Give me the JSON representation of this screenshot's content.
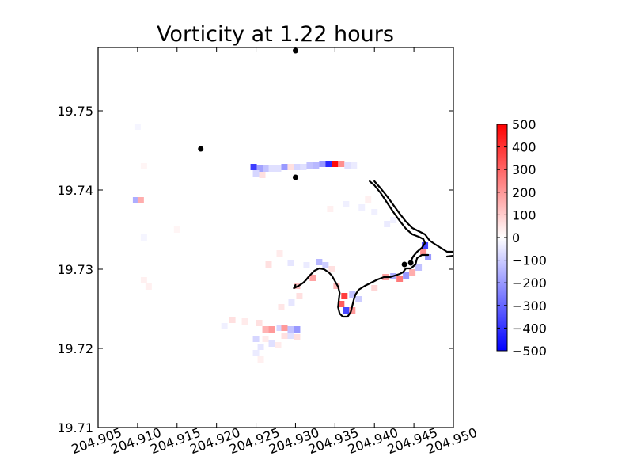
{
  "chart_data": {
    "type": "heatmap",
    "title": "Vorticity at 1.22 hours",
    "xlabel": "",
    "ylabel": "",
    "xlim": [
      204.905,
      204.95
    ],
    "ylim": [
      19.71,
      19.758
    ],
    "x_ticks": [
      "204.905",
      "204.910",
      "204.915",
      "204.920",
      "204.925",
      "204.930",
      "204.935",
      "204.940",
      "204.945",
      "204.950"
    ],
    "y_ticks": [
      "19.71",
      "19.72",
      "19.73",
      "19.74",
      "19.75"
    ],
    "colorbar": {
      "min": -500,
      "max": 500,
      "ticks": [
        "500",
        "400",
        "300",
        "200",
        "100",
        "0",
        "−100",
        "−200",
        "−300",
        "−400",
        "−500"
      ],
      "colormap": "bwr",
      "low_color": "#0000ff",
      "mid_color": "#ffffff",
      "high_color": "#ff0000"
    },
    "gauge_points": [
      {
        "x": 204.93,
        "y": 19.7576
      },
      {
        "x": 204.918,
        "y": 19.7452
      },
      {
        "x": 204.93,
        "y": 19.7416
      },
      {
        "x": 204.9438,
        "y": 19.7306
      },
      {
        "x": 204.9446,
        "y": 19.7308
      }
    ],
    "shoreline": [
      [
        [
          204.9394,
          19.7411
        ],
        [
          204.94,
          19.7406
        ],
        [
          204.9408,
          19.7396
        ],
        [
          204.9416,
          19.7384
        ],
        [
          204.9424,
          19.7372
        ],
        [
          204.9432,
          19.7361
        ],
        [
          204.944,
          19.7351
        ],
        [
          204.9448,
          19.7344
        ],
        [
          204.9456,
          19.7341
        ],
        [
          204.9462,
          19.7338
        ],
        [
          204.9464,
          19.7333
        ],
        [
          204.946,
          19.7327
        ],
        [
          204.9454,
          19.7322
        ],
        [
          204.9449,
          19.7316
        ],
        [
          204.9446,
          19.731
        ]
      ],
      [
        [
          204.94,
          19.7411
        ],
        [
          204.9408,
          19.7402
        ],
        [
          204.9416,
          19.7392
        ],
        [
          204.9424,
          19.7381
        ],
        [
          204.9432,
          19.737
        ],
        [
          204.944,
          19.736
        ],
        [
          204.9448,
          19.7352
        ],
        [
          204.9456,
          19.7348
        ],
        [
          204.9464,
          19.7344
        ],
        [
          204.947,
          19.7336
        ],
        [
          204.9476,
          19.7332
        ],
        [
          204.9484,
          19.7327
        ],
        [
          204.9492,
          19.7322
        ],
        [
          204.95,
          19.7322
        ]
      ],
      [
        [
          204.9468,
          19.7318
        ],
        [
          204.946,
          19.7318
        ],
        [
          204.9454,
          19.7314
        ],
        [
          204.9452,
          19.7306
        ],
        [
          204.9446,
          19.7301
        ],
        [
          204.944,
          19.7301
        ],
        [
          204.9436,
          19.7296
        ],
        [
          204.9432,
          19.7294
        ],
        [
          204.9426,
          19.7292
        ],
        [
          204.942,
          19.729
        ],
        [
          204.9412,
          19.729
        ],
        [
          204.9404,
          19.7287
        ],
        [
          204.9396,
          19.7283
        ],
        [
          204.9388,
          19.7279
        ],
        [
          204.938,
          19.7274
        ],
        [
          204.9376,
          19.7268
        ],
        [
          204.9374,
          19.7262
        ],
        [
          204.9372,
          19.7254
        ],
        [
          204.937,
          19.7246
        ],
        [
          204.9366,
          19.724
        ],
        [
          204.936,
          19.724
        ],
        [
          204.9356,
          19.7244
        ],
        [
          204.9354,
          19.7252
        ],
        [
          204.9355,
          19.7262
        ],
        [
          204.9356,
          19.727
        ],
        [
          204.9354,
          19.7278
        ],
        [
          204.935,
          19.7285
        ],
        [
          204.9346,
          19.7292
        ],
        [
          204.9342,
          19.7296
        ],
        [
          204.9336,
          19.73
        ],
        [
          204.933,
          19.7301
        ],
        [
          204.9324,
          19.7298
        ],
        [
          204.9318,
          19.7292
        ],
        [
          204.9313,
          19.7286
        ],
        [
          204.931,
          19.7283
        ],
        [
          204.9304,
          19.7279
        ],
        [
          204.9298,
          19.7276
        ],
        [
          204.93,
          19.728
        ]
      ],
      [
        [
          204.9492,
          19.7316
        ],
        [
          204.95,
          19.7317
        ]
      ]
    ],
    "vorticity_cells": [
      {
        "x": 204.9247,
        "y": 19.7429,
        "v": -380
      },
      {
        "x": 204.9255,
        "y": 19.7427,
        "v": -180
      },
      {
        "x": 204.9263,
        "y": 19.7427,
        "v": -120
      },
      {
        "x": 204.927,
        "y": 19.7427,
        "v": -60
      },
      {
        "x": 204.9278,
        "y": 19.7427,
        "v": -60
      },
      {
        "x": 204.9286,
        "y": 19.7429,
        "v": -200
      },
      {
        "x": 204.9294,
        "y": 19.7429,
        "v": 60
      },
      {
        "x": 204.9302,
        "y": 19.7429,
        "v": -80
      },
      {
        "x": 204.931,
        "y": 19.7429,
        "v": -60
      },
      {
        "x": 204.9318,
        "y": 19.7431,
        "v": -120
      },
      {
        "x": 204.9326,
        "y": 19.7431,
        "v": -140
      },
      {
        "x": 204.9334,
        "y": 19.7433,
        "v": -200
      },
      {
        "x": 204.9342,
        "y": 19.7433,
        "v": -420
      },
      {
        "x": 204.935,
        "y": 19.7433,
        "v": 480
      },
      {
        "x": 204.9358,
        "y": 19.7433,
        "v": 220
      },
      {
        "x": 204.9366,
        "y": 19.7431,
        "v": -60
      },
      {
        "x": 204.9374,
        "y": 19.7431,
        "v": -40
      },
      {
        "x": 204.925,
        "y": 19.7421,
        "v": -80
      },
      {
        "x": 204.9258,
        "y": 19.7419,
        "v": 60
      },
      {
        "x": 204.9098,
        "y": 19.7387,
        "v": -160
      },
      {
        "x": 204.9104,
        "y": 19.7387,
        "v": 160
      },
      {
        "x": 204.9314,
        "y": 19.7305,
        "v": -40
      },
      {
        "x": 204.933,
        "y": 19.7309,
        "v": -140
      },
      {
        "x": 204.9338,
        "y": 19.7305,
        "v": -100
      },
      {
        "x": 204.9346,
        "y": 19.73,
        "v": 60
      },
      {
        "x": 204.9322,
        "y": 19.7289,
        "v": 180
      },
      {
        "x": 204.9302,
        "y": 19.7279,
        "v": 120
      },
      {
        "x": 204.9352,
        "y": 19.7279,
        "v": 140
      },
      {
        "x": 204.9362,
        "y": 19.7266,
        "v": 380
      },
      {
        "x": 204.9358,
        "y": 19.7256,
        "v": 320
      },
      {
        "x": 204.9364,
        "y": 19.7248,
        "v": -360
      },
      {
        "x": 204.9372,
        "y": 19.7248,
        "v": 200
      },
      {
        "x": 204.9372,
        "y": 19.7268,
        "v": -120
      },
      {
        "x": 204.938,
        "y": 19.7262,
        "v": -100
      },
      {
        "x": 204.94,
        "y": 19.7276,
        "v": 80
      },
      {
        "x": 204.9414,
        "y": 19.729,
        "v": 180
      },
      {
        "x": 204.9424,
        "y": 19.7291,
        "v": -160
      },
      {
        "x": 204.9432,
        "y": 19.7288,
        "v": 260
      },
      {
        "x": 204.944,
        "y": 19.7292,
        "v": -200
      },
      {
        "x": 204.9448,
        "y": 19.7296,
        "v": 160
      },
      {
        "x": 204.9456,
        "y": 19.7302,
        "v": -120
      },
      {
        "x": 204.9462,
        "y": 19.7322,
        "v": 220
      },
      {
        "x": 204.9464,
        "y": 19.733,
        "v": -360
      },
      {
        "x": 204.9468,
        "y": 19.7315,
        "v": -200
      },
      {
        "x": 204.9416,
        "y": 19.7357,
        "v": -40
      },
      {
        "x": 204.9424,
        "y": 19.7362,
        "v": -30
      },
      {
        "x": 204.94,
        "y": 19.7372,
        "v": -30
      },
      {
        "x": 204.9392,
        "y": 19.7388,
        "v": 30
      },
      {
        "x": 204.9384,
        "y": 19.7378,
        "v": -30
      },
      {
        "x": 204.9364,
        "y": 19.7382,
        "v": -30
      },
      {
        "x": 204.9344,
        "y": 19.7376,
        "v": 30
      },
      {
        "x": 204.9266,
        "y": 19.7306,
        "v": 60
      },
      {
        "x": 204.928,
        "y": 19.732,
        "v": 40
      },
      {
        "x": 204.9294,
        "y": 19.7308,
        "v": -50
      },
      {
        "x": 204.9305,
        "y": 19.7266,
        "v": 60
      },
      {
        "x": 204.9295,
        "y": 19.7258,
        "v": -50
      },
      {
        "x": 204.9282,
        "y": 19.7252,
        "v": 50
      },
      {
        "x": 204.922,
        "y": 19.7236,
        "v": 60
      },
      {
        "x": 204.9236,
        "y": 19.7234,
        "v": 40
      },
      {
        "x": 204.9254,
        "y": 19.7232,
        "v": 60
      },
      {
        "x": 204.9262,
        "y": 19.7224,
        "v": 150
      },
      {
        "x": 204.927,
        "y": 19.7224,
        "v": 200
      },
      {
        "x": 204.928,
        "y": 19.7226,
        "v": -80
      },
      {
        "x": 204.9286,
        "y": 19.7226,
        "v": 200
      },
      {
        "x": 204.9294,
        "y": 19.7224,
        "v": -120
      },
      {
        "x": 204.9302,
        "y": 19.7224,
        "v": -200
      },
      {
        "x": 204.9286,
        "y": 19.7216,
        "v": 60
      },
      {
        "x": 204.9294,
        "y": 19.7216,
        "v": -60
      },
      {
        "x": 204.9302,
        "y": 19.7214,
        "v": 60
      },
      {
        "x": 204.925,
        "y": 19.7212,
        "v": -80
      },
      {
        "x": 204.9256,
        "y": 19.7202,
        "v": -50
      },
      {
        "x": 204.9262,
        "y": 19.7212,
        "v": 40
      },
      {
        "x": 204.927,
        "y": 19.7206,
        "v": -60
      },
      {
        "x": 204.9278,
        "y": 19.7204,
        "v": 40
      },
      {
        "x": 204.925,
        "y": 19.7194,
        "v": -40
      },
      {
        "x": 204.9256,
        "y": 19.7186,
        "v": 30
      },
      {
        "x": 204.921,
        "y": 19.7228,
        "v": -30
      },
      {
        "x": 204.9108,
        "y": 19.7286,
        "v": 30
      },
      {
        "x": 204.9114,
        "y": 19.7278,
        "v": 30
      },
      {
        "x": 204.915,
        "y": 19.735,
        "v": 20
      },
      {
        "x": 204.91,
        "y": 19.748,
        "v": -20
      },
      {
        "x": 204.9108,
        "y": 19.743,
        "v": 20
      },
      {
        "x": 204.9108,
        "y": 19.734,
        "v": -20
      }
    ]
  }
}
